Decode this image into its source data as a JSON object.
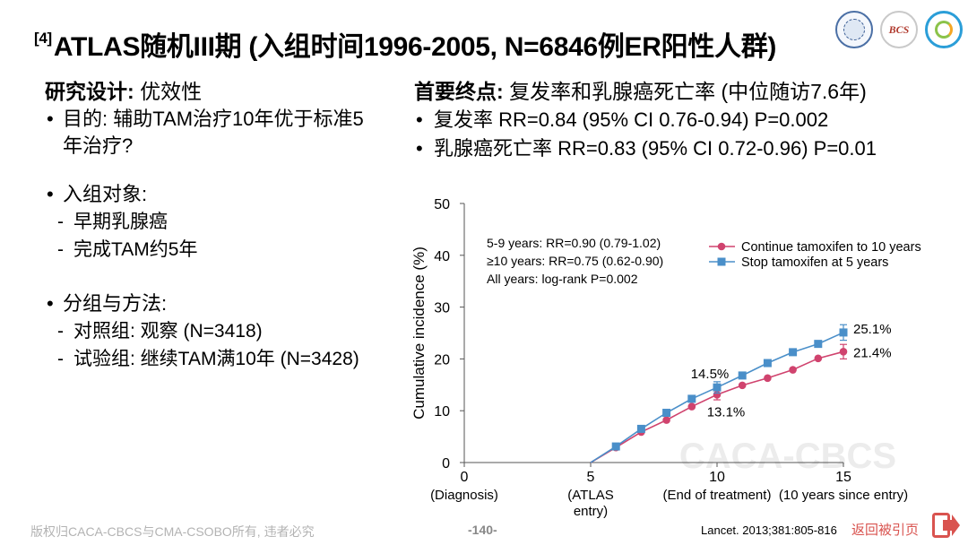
{
  "header": {
    "ref_tag": "[4]",
    "title": "ATLAS随机III期 (入组时间1996-2005, N=6846例ER阳性人群)",
    "logo_text": "BCS"
  },
  "design": {
    "label": "研究设计:",
    "value": "优效性",
    "purpose": "目的: 辅助TAM治疗10年优于标准5年治疗?",
    "subjects_label": "入组对象:",
    "subjects": [
      "早期乳腺癌",
      "完成TAM约5年"
    ],
    "groups_label": "分组与方法:",
    "groups": [
      "对照组: 观察 (N=3418)",
      "试验组: 继续TAM满10年 (N=3428)"
    ]
  },
  "endpoint": {
    "label": "首要终点:",
    "value": "复发率和乳腺癌死亡率 (中位随访7.6年)",
    "items": [
      "复发率 RR=0.84 (95% CI 0.76-0.94) P=0.002",
      "乳腺癌死亡率 RR=0.83 (95% CI 0.72-0.96) P=0.01"
    ]
  },
  "chart_data": {
    "type": "line",
    "ylabel": "Cumulative incidence (%)",
    "xlabel": "",
    "ylim": [
      0,
      50
    ],
    "xlim": [
      0,
      15
    ],
    "y_ticks": [
      0,
      10,
      20,
      30,
      40,
      50
    ],
    "x_ticks": [
      {
        "value": 0,
        "label": "0",
        "sublabel": "(Diagnosis)"
      },
      {
        "value": 5,
        "label": "5",
        "sublabel": "(ATLAS entry)"
      },
      {
        "value": 10,
        "label": "10",
        "sublabel": "(End of treatment)"
      },
      {
        "value": 15,
        "label": "15",
        "sublabel": "(10 years since entry)"
      }
    ],
    "stats_text": [
      "5-9 years: RR=0.90 (0.79-1.02)",
      "≥10 years: RR=0.75 (0.62-0.90)",
      "All years: log-rank P=0.002"
    ],
    "legend_position": "top-right",
    "grid": false,
    "series": [
      {
        "name": "Continue tamoxifen to 10 years",
        "color": "#d0436e",
        "marker": "circle",
        "x": [
          5,
          6,
          7,
          8,
          9,
          10,
          11,
          12,
          13,
          14,
          15
        ],
        "y": [
          0,
          2.9,
          5.9,
          8.2,
          10.8,
          13.1,
          14.9,
          16.3,
          17.9,
          20.1,
          21.4
        ],
        "error_bars": [
          {
            "x": 10,
            "low": 12.1,
            "high": 14.1
          },
          {
            "x": 15,
            "low": 20.0,
            "high": 22.8
          }
        ],
        "annotations": [
          {
            "x": 10,
            "y": 13.1,
            "text": "13.1%"
          },
          {
            "x": 15,
            "y": 21.4,
            "text": "21.4%"
          }
        ]
      },
      {
        "name": "Stop tamoxifen at 5 years",
        "color": "#4a8fc9",
        "marker": "square",
        "x": [
          5,
          6,
          7,
          8,
          9,
          10,
          11,
          12,
          13,
          14,
          15
        ],
        "y": [
          0,
          3.1,
          6.5,
          9.6,
          12.3,
          14.5,
          16.8,
          19.2,
          21.3,
          22.9,
          25.1
        ],
        "error_bars": [
          {
            "x": 10,
            "low": 13.4,
            "high": 15.6
          },
          {
            "x": 15,
            "low": 23.6,
            "high": 26.6
          }
        ],
        "annotations": [
          {
            "x": 10,
            "y": 14.5,
            "text": "14.5%"
          },
          {
            "x": 15,
            "y": 25.1,
            "text": "25.1%"
          }
        ]
      }
    ],
    "watermark": "CACA-CBCS"
  },
  "footer": {
    "copyright": "版权归CACA-CBCS与CMA-CSOBO所有, 违者必究",
    "page": "-140-",
    "reference": "Lancet. 2013;381:805-816",
    "back_link": "返回被引页"
  }
}
